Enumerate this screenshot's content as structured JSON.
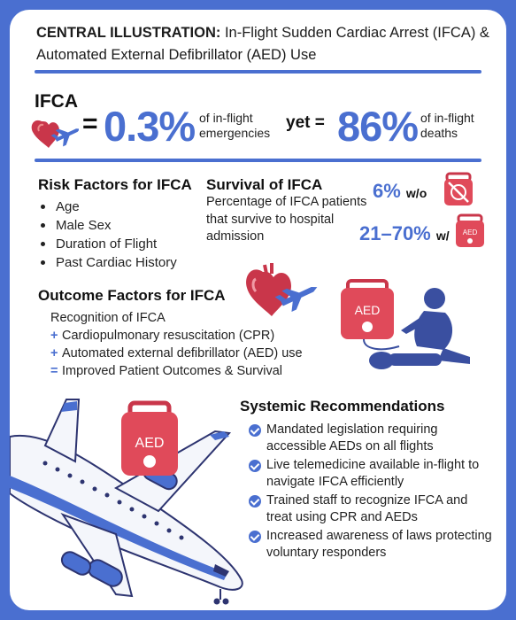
{
  "header": {
    "title_bold": "CENTRAL ILLUSTRATION:",
    "title_rest": "In-Flight Sudden Cardiac Arrest (IFCA) & Automated External Defibrillator (AED) Use"
  },
  "stats": {
    "heading": "IFCA",
    "equals": "=",
    "pct_emergencies": "0.3%",
    "emergencies_label_1": "of in-flight",
    "emergencies_label_2": "emergencies",
    "yet_label": "yet =",
    "pct_deaths": "86%",
    "deaths_label_1": "of in-flight",
    "deaths_label_2": "deaths"
  },
  "risk": {
    "heading": "Risk Factors for IFCA",
    "items": [
      "Age",
      "Male Sex",
      "Duration of Flight",
      "Past Cardiac History"
    ]
  },
  "survival": {
    "heading": "Survival of IFCA",
    "description": "Percentage of IFCA patients that survive to hospital admission",
    "without_value": "6%",
    "without_label": "w/o",
    "with_value": "21–70%",
    "with_label": "w/",
    "aed_text": "AED"
  },
  "outcome": {
    "heading": "Outcome Factors for IFCA",
    "line1": "Recognition of IFCA",
    "plus": "+",
    "line2": "Cardiopulmonary resuscitation (CPR)",
    "line3": "Automated external defibrillator (AED) use",
    "eq": "=",
    "line4": "Improved Patient Outcomes & Survival"
  },
  "recommendations": {
    "heading": "Systemic Recommendations",
    "items": [
      "Mandated legislation requiring accessible AEDs on all flights",
      "Live telemedicine available in-flight to navigate IFCA efficiently",
      "Trained staff to recognize IFCA and treat using CPR and AEDs",
      "Increased awareness of laws protecting voluntary responders"
    ]
  },
  "colors": {
    "accent": "#4a6fd0",
    "aed_red": "#e04a5a",
    "heart": "#c9364a"
  },
  "icons": [
    "heart-icon",
    "airplane-icon",
    "aed-icon",
    "cpr-figure-icon",
    "check-icon"
  ]
}
